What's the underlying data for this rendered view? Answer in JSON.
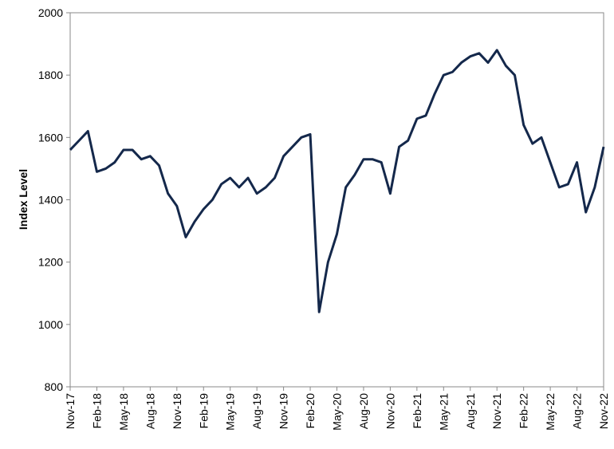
{
  "chart_data": {
    "type": "line",
    "y_label": "Index Level",
    "x": [
      "Nov-17",
      "Dec-17",
      "Jan-18",
      "Feb-18",
      "Mar-18",
      "Apr-18",
      "May-18",
      "Jun-18",
      "Jul-18",
      "Aug-18",
      "Sep-18",
      "Oct-18",
      "Nov-18",
      "Dec-18",
      "Jan-19",
      "Feb-19",
      "Mar-19",
      "Apr-19",
      "May-19",
      "Jun-19",
      "Jul-19",
      "Aug-19",
      "Sep-19",
      "Oct-19",
      "Nov-19",
      "Dec-19",
      "Jan-20",
      "Feb-20",
      "Mar-20",
      "Apr-20",
      "May-20",
      "Jun-20",
      "Jul-20",
      "Aug-20",
      "Sep-20",
      "Oct-20",
      "Nov-20",
      "Dec-20",
      "Jan-21",
      "Feb-21",
      "Mar-21",
      "Apr-21",
      "May-21",
      "Jun-21",
      "Jul-21",
      "Aug-21",
      "Sep-21",
      "Oct-21",
      "Nov-21",
      "Dec-21",
      "Jan-22",
      "Feb-22",
      "Mar-22",
      "Apr-22",
      "May-22",
      "Jun-22",
      "Jul-22",
      "Aug-22",
      "Sep-22",
      "Oct-22",
      "Nov-22"
    ],
    "series": [
      {
        "name": "Index",
        "color": "#14284b",
        "values": [
          1560,
          1590,
          1620,
          1490,
          1500,
          1520,
          1560,
          1560,
          1530,
          1540,
          1510,
          1420,
          1380,
          1280,
          1330,
          1370,
          1400,
          1450,
          1470,
          1440,
          1470,
          1420,
          1440,
          1470,
          1540,
          1570,
          1600,
          1610,
          1040,
          1200,
          1290,
          1440,
          1480,
          1530,
          1530,
          1520,
          1420,
          1570,
          1590,
          1660,
          1670,
          1740,
          1800,
          1810,
          1840,
          1860,
          1870,
          1840,
          1880,
          1830,
          1800,
          1640,
          1580,
          1600,
          1520,
          1440,
          1450,
          1520,
          1360,
          1440,
          1570
        ]
      }
    ],
    "xticks": [
      "Nov-17",
      "Feb-18",
      "May-18",
      "Aug-18",
      "Nov-18",
      "Feb-19",
      "May-19",
      "Aug-19",
      "Nov-19",
      "Feb-20",
      "May-20",
      "Aug-20",
      "Nov-20",
      "Feb-21",
      "May-21",
      "Aug-21",
      "Nov-21",
      "Feb-22",
      "May-22",
      "Aug-22",
      "Nov-22"
    ],
    "ylim": [
      800,
      2000
    ],
    "yticks": [
      800,
      1000,
      1200,
      1400,
      1600,
      1800,
      2000
    ],
    "grid": false
  }
}
